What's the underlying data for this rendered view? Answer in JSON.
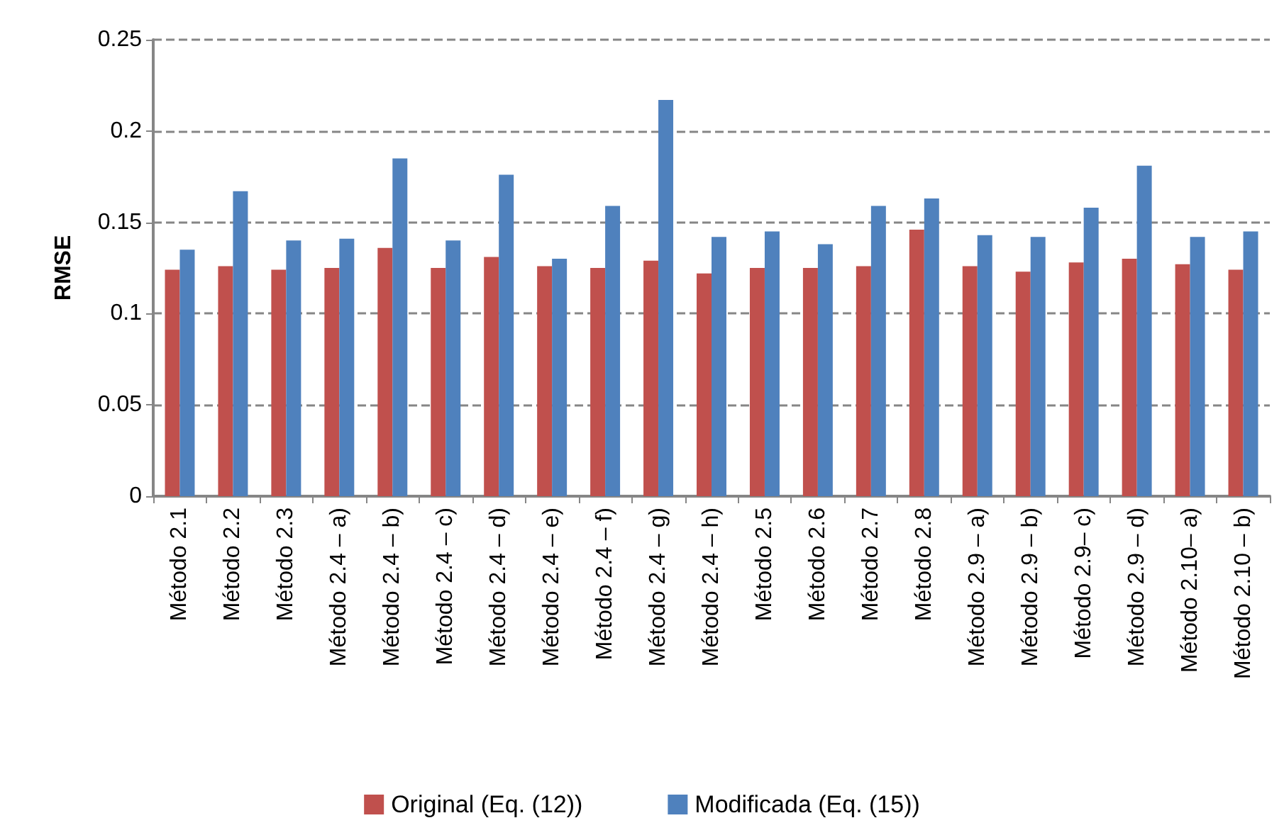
{
  "chart_data": {
    "type": "bar",
    "ylabel": "RMSE",
    "categories": [
      "Método 2.1",
      "Método 2.2",
      "Método 2.3",
      "Método 2.4 – a)",
      "Método 2.4 – b)",
      "Método 2.4 – c)",
      "Método 2.4 – d)",
      "Método 2.4 – e)",
      "Método 2.4 – f)",
      "Método 2.4 – g)",
      "Método 2.4 – h)",
      "Método 2.5",
      "Método 2.6",
      "Método 2.7",
      "Método 2.8",
      "Método 2.9 – a)",
      "Método 2.9 – b)",
      "Método 2.9– c)",
      "Método 2.9 – d)",
      "Método 2.10– a)",
      "Método 2.10 – b)"
    ],
    "series": [
      {
        "name": "Original (Eq. (12))",
        "color": "#c0504d",
        "values": [
          0.124,
          0.126,
          0.124,
          0.125,
          0.136,
          0.125,
          0.131,
          0.126,
          0.125,
          0.129,
          0.122,
          0.125,
          0.125,
          0.126,
          0.146,
          0.126,
          0.123,
          0.128,
          0.13,
          0.127,
          0.124
        ]
      },
      {
        "name": "Modificada (Eq. (15))",
        "color": "#4f81bd",
        "values": [
          0.135,
          0.167,
          0.14,
          0.141,
          0.185,
          0.14,
          0.176,
          0.13,
          0.159,
          0.217,
          0.142,
          0.145,
          0.138,
          0.159,
          0.163,
          0.143,
          0.142,
          0.158,
          0.181,
          0.142,
          0.145
        ]
      }
    ],
    "ylim": [
      0,
      0.25
    ],
    "yticks": [
      0,
      0.05,
      0.1,
      0.15,
      0.2,
      0.25
    ],
    "grid": "y",
    "legend": "bottom"
  }
}
